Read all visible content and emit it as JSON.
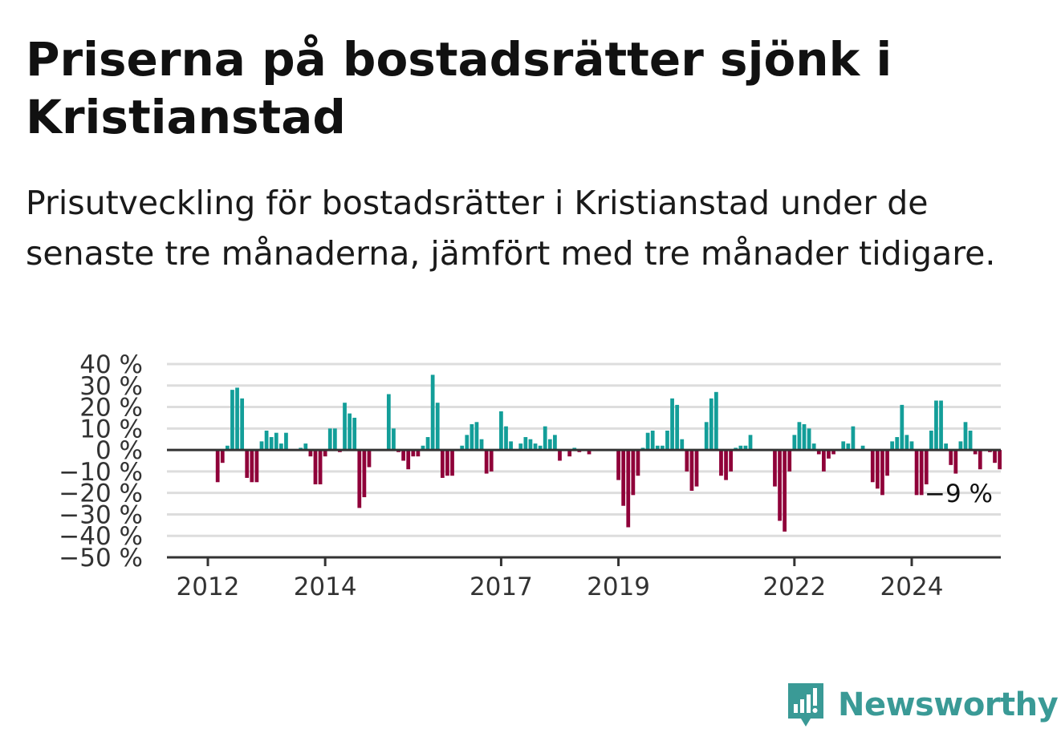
{
  "title": "Priserna på bostadsrätter sjönk i Kristianstad",
  "subtitle": "Prisutveckling för bostadsrätter i Kristianstad under de senaste tre månaderna, jämfört med tre månader tidigare.",
  "brand": {
    "name": "Newsworthy",
    "icon": "newsworthy-logo-icon",
    "color": "#3a9a96"
  },
  "chart_data": {
    "type": "bar",
    "title": "",
    "xlabel": "",
    "ylabel": "",
    "ylim": [
      -50,
      40
    ],
    "y_ticks": [
      40,
      30,
      20,
      10,
      0,
      -10,
      -20,
      -30,
      -40,
      -50
    ],
    "y_tick_labels": [
      "40 %",
      "30 %",
      "20 %",
      "10 %",
      "0 %",
      "−10 %",
      "−20 %",
      "−30 %",
      "−40 %",
      "−50 %"
    ],
    "x_tick_labels": [
      "2012",
      "2014",
      "2017",
      "2019",
      "2022",
      "2024"
    ],
    "x_tick_dates": [
      "2012-01",
      "2014-01",
      "2017-01",
      "2019-01",
      "2022-01",
      "2024-01"
    ],
    "grid": true,
    "colors": {
      "positive": "#139e99",
      "negative": "#8f0039",
      "grid": "#dddddd",
      "axis": "#333333"
    },
    "end_label": "−9 %",
    "series": [
      {
        "start": "2011-11",
        "values": [
          0,
          0,
          0,
          0,
          -15,
          -6,
          2,
          28,
          29,
          24,
          -13,
          -15,
          -15,
          4,
          9,
          6,
          8,
          3,
          8,
          0,
          0,
          1,
          3,
          -3,
          -16,
          -16,
          -3,
          10,
          10,
          -1,
          22,
          17,
          15,
          -27,
          -22,
          -8,
          0,
          0,
          0,
          26,
          10,
          -1,
          -5,
          -9,
          -3,
          -3,
          2,
          6,
          35,
          22,
          -13,
          -12,
          -12,
          0,
          2,
          7,
          12,
          13,
          5,
          -11,
          -10,
          0,
          18,
          11,
          4,
          0,
          3,
          6,
          5,
          3,
          2,
          11,
          5,
          7,
          -5,
          0,
          -3,
          1,
          -1,
          0,
          -2,
          0,
          0,
          0,
          0,
          0,
          -14,
          -26,
          -36,
          -21,
          -12,
          1,
          8,
          9,
          2,
          2,
          9,
          24,
          21,
          5,
          -10,
          -19,
          -17,
          0,
          13,
          24,
          27,
          -12,
          -14,
          -10,
          1,
          2,
          2,
          7,
          0,
          0,
          0,
          0,
          -17,
          -33,
          -38,
          -10,
          7,
          13,
          12,
          10,
          3,
          -2,
          -10,
          -4,
          -2,
          0,
          4,
          3,
          11,
          0,
          2,
          0,
          -15,
          -18,
          -21,
          -12,
          4,
          6,
          21,
          7,
          4,
          -21,
          -21,
          -16,
          9,
          23,
          23,
          3,
          -7,
          -11,
          4,
          13,
          9,
          -2,
          -9,
          0,
          -1,
          -6,
          -9
        ]
      }
    ]
  }
}
